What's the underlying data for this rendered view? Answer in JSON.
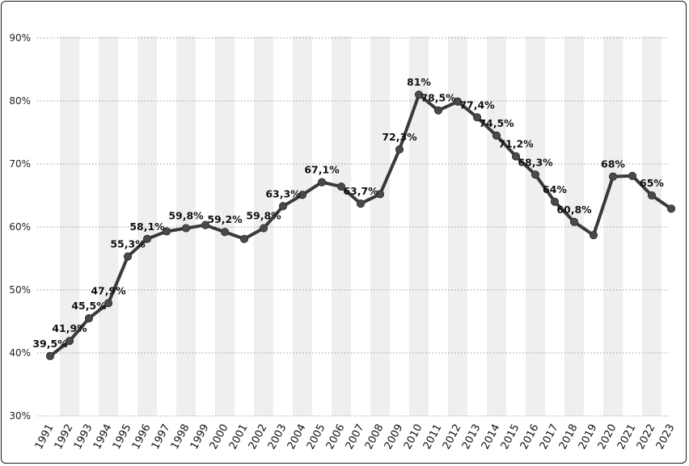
{
  "chart_data": {
    "type": "line",
    "title": "",
    "xlabel": "",
    "ylabel": "",
    "ylim": [
      30,
      90
    ],
    "yticks": [
      30,
      40,
      50,
      60,
      70,
      80,
      90
    ],
    "ytick_labels": [
      "30%",
      "40%",
      "50%",
      "60%",
      "70%",
      "80%",
      "90%"
    ],
    "grid": "horizontal dotted",
    "alternating_column_bands": true,
    "legend": "none",
    "line_color": "#3a3a3a",
    "band_color": "#efefef",
    "x": [
      "1991",
      "1992",
      "1993",
      "1994",
      "1995",
      "1996",
      "1997",
      "1998",
      "1999",
      "2000",
      "2001",
      "2002",
      "2003",
      "2004",
      "2005",
      "2006",
      "2007",
      "2008",
      "2009",
      "2010",
      "2011",
      "2012",
      "2013",
      "2014",
      "2015",
      "2016",
      "2017",
      "2018",
      "2019",
      "2020",
      "2021",
      "2022",
      "2023"
    ],
    "values": [
      39.5,
      41.9,
      45.5,
      47.9,
      55.3,
      58.1,
      59.3,
      59.8,
      60.3,
      59.2,
      58.1,
      59.8,
      63.3,
      65.1,
      67.1,
      66.4,
      63.7,
      65.2,
      72.3,
      81.0,
      78.5,
      79.9,
      77.4,
      74.5,
      71.2,
      68.3,
      64.0,
      60.8,
      58.7,
      68.0,
      68.1,
      65.0,
      62.9
    ],
    "data_labels": [
      "39,5%",
      "41,9%",
      "45,5%",
      "47,9%",
      "55,3%",
      "58,1%",
      null,
      "59,8%",
      null,
      "59,2%",
      null,
      "59,8%",
      "63,3%",
      null,
      "67,1%",
      null,
      "63,7%",
      null,
      "72,3%",
      "81%",
      "78,5%",
      null,
      "77,4%",
      "74,5%",
      "71,2%",
      "68,3%",
      "64%",
      "60,8%",
      null,
      "68%",
      null,
      "65%",
      null
    ]
  }
}
